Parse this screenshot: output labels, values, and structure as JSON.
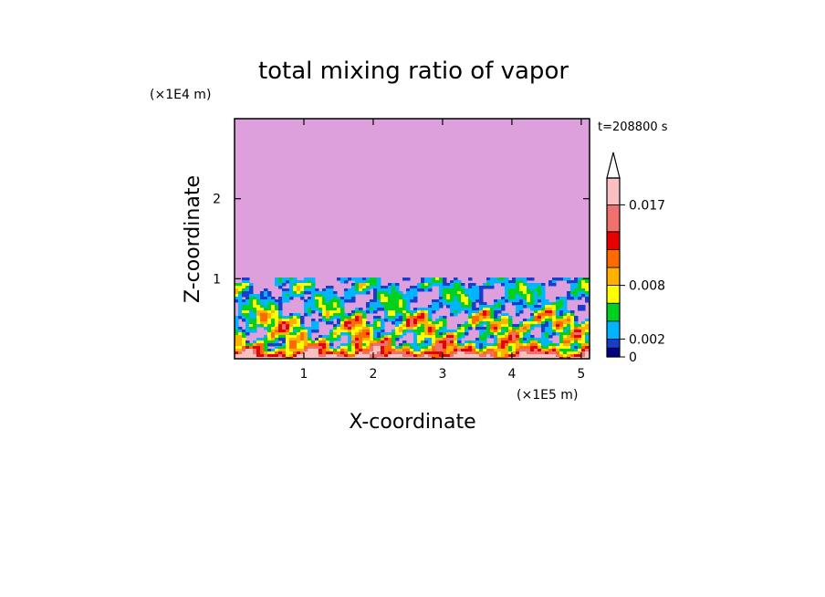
{
  "chart_data": {
    "type": "heatmap",
    "title": "total mixing ratio of vapor",
    "xlabel": "X-coordinate",
    "ylabel": "Z-coordinate",
    "x_unit": "(×1E5 m)",
    "y_unit": "(×1E4 m)",
    "time_label": "t=208800 s",
    "xlim": [
      0,
      5.12
    ],
    "ylim": [
      0,
      3.0
    ],
    "x_ticks": [
      "1",
      "2",
      "3",
      "4",
      "5"
    ],
    "x_tick_values": [
      1,
      2,
      3,
      4,
      5
    ],
    "y_ticks": [
      "1",
      "2"
    ],
    "y_tick_values": [
      1,
      2
    ],
    "background_level_color": "#dda0dd",
    "colorbar": {
      "labels": [
        "0.017",
        "0.008",
        "0.002",
        "0"
      ],
      "label_values": [
        0.017,
        0.008,
        0.002,
        0
      ],
      "levels": [
        0,
        0.001,
        0.002,
        0.004,
        0.006,
        0.008,
        0.01,
        0.012,
        0.014,
        0.017,
        0.02
      ],
      "colors": [
        "#000080",
        "#1a3ccc",
        "#00b4ff",
        "#00d020",
        "#ffff00",
        "#ffb000",
        "#ff6a00",
        "#e80000",
        "#f07070",
        "#f8c0c0"
      ],
      "extend": "max"
    },
    "profile_note": "moist layer below z≈1 (×1E4 m), dry above"
  }
}
